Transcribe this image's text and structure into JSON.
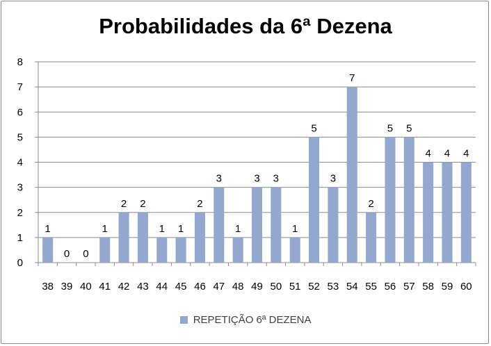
{
  "chart_data": {
    "type": "bar",
    "title": "Probabilidades da 6ª Dezena",
    "categories": [
      "38",
      "39",
      "40",
      "41",
      "42",
      "43",
      "44",
      "45",
      "46",
      "47",
      "48",
      "49",
      "50",
      "51",
      "52",
      "53",
      "54",
      "55",
      "56",
      "57",
      "58",
      "59",
      "60"
    ],
    "series": [
      {
        "name": "REPETIÇÃO 6ª DEZENA",
        "values": [
          1,
          0,
          0,
          1,
          2,
          2,
          1,
          1,
          2,
          3,
          1,
          3,
          3,
          1,
          5,
          3,
          7,
          2,
          5,
          5,
          4,
          4,
          4
        ]
      }
    ],
    "yticks": [
      "0",
      "1",
      "2",
      "3",
      "4",
      "5",
      "6",
      "7",
      "8"
    ],
    "ylim": [
      0,
      8
    ],
    "grid": true,
    "legend_position": "bottom",
    "bar_color": "#94a8cf"
  }
}
